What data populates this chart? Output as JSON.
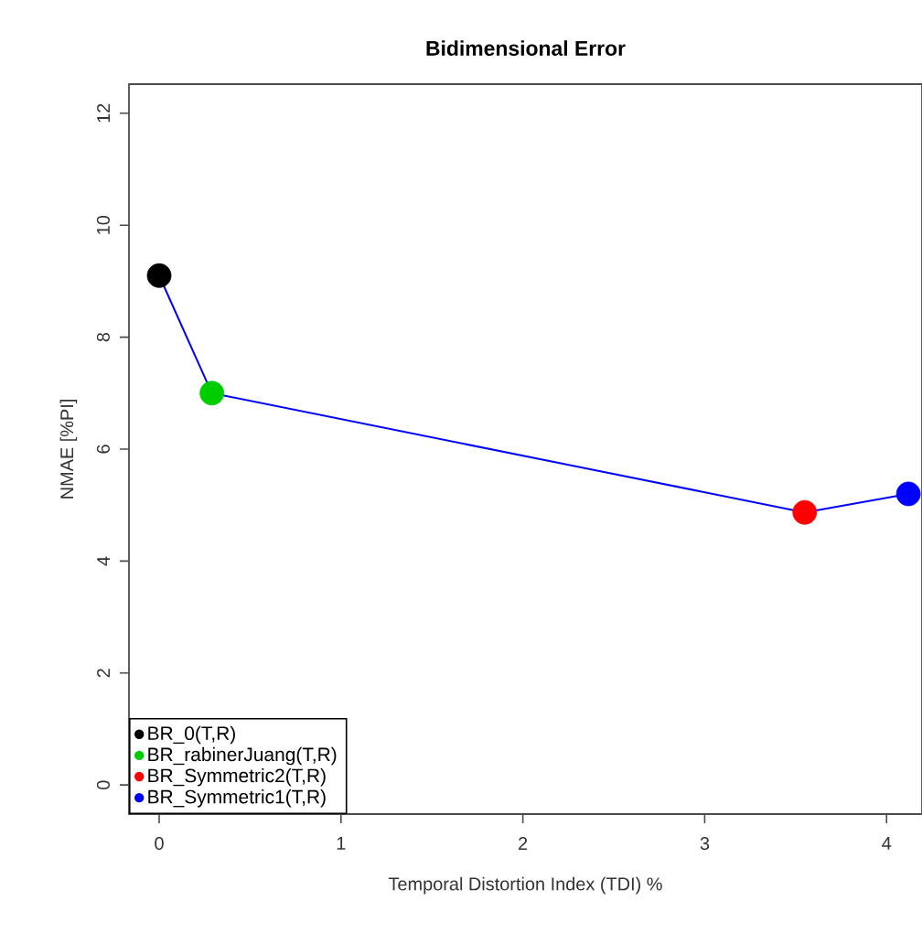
{
  "chart_data": {
    "type": "line",
    "title": "Bidimensional Error",
    "xlabel": "Temporal Distortion Index (TDI) %",
    "ylabel": "NMAE [%PI]",
    "xlim": [
      -0.166,
      4.195
    ],
    "ylim": [
      -0.52,
      12.52
    ],
    "xticks": [
      0,
      1,
      2,
      3,
      4
    ],
    "yticks": [
      0,
      2,
      4,
      6,
      8,
      10,
      12
    ],
    "grid": false,
    "legend": "bottom left",
    "series": [
      {
        "type": "line",
        "color": "#0000ff",
        "x": [
          0,
          0.29,
          3.55,
          4.12
        ],
        "values": [
          9.1,
          7.0,
          4.87,
          5.2
        ],
        "marker": "none",
        "line_style": "solid"
      },
      {
        "type": "scatter",
        "name": "BR_0(T,R)",
        "color": "#000000",
        "x": [
          0
        ],
        "values": [
          9.1
        ],
        "marker": "circle"
      },
      {
        "type": "scatter",
        "name": "BR_rabinerJuang(T,R)",
        "color": "#00cd00",
        "x": [
          0.29
        ],
        "values": [
          7.0
        ],
        "marker": "circle"
      },
      {
        "type": "scatter",
        "name": "BR_Symmetric2(T,R)",
        "color": "#ff0000",
        "x": [
          3.55
        ],
        "values": [
          4.87
        ],
        "marker": "circle"
      },
      {
        "type": "scatter",
        "name": "BR_Symmetric1(T,R)",
        "color": "#0000ff",
        "x": [
          4.12
        ],
        "values": [
          5.2
        ],
        "marker": "circle"
      }
    ]
  }
}
